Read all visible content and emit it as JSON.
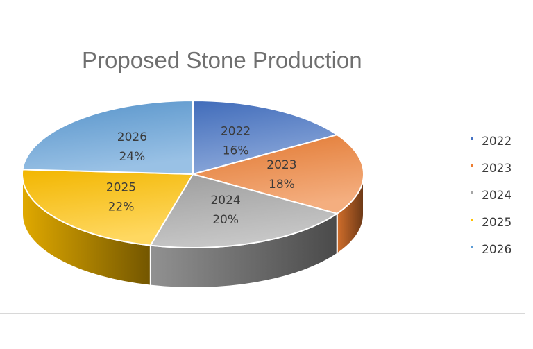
{
  "chart_data": {
    "type": "pie",
    "title": "Proposed Stone Production",
    "slices": [
      {
        "label": "2022",
        "value": 16,
        "value_label": "16%",
        "color": "#4472c4"
      },
      {
        "label": "2023",
        "value": 18,
        "value_label": "18%",
        "color": "#ed7d31"
      },
      {
        "label": "2024",
        "value": 20,
        "value_label": "20%",
        "color": "#a5a5a5"
      },
      {
        "label": "2025",
        "value": 22,
        "value_label": "22%",
        "color": "#ffc000"
      },
      {
        "label": "2026",
        "value": 24,
        "value_label": "24%",
        "color": "#5b9bd5"
      }
    ],
    "legend_position": "right",
    "style": "3d"
  }
}
